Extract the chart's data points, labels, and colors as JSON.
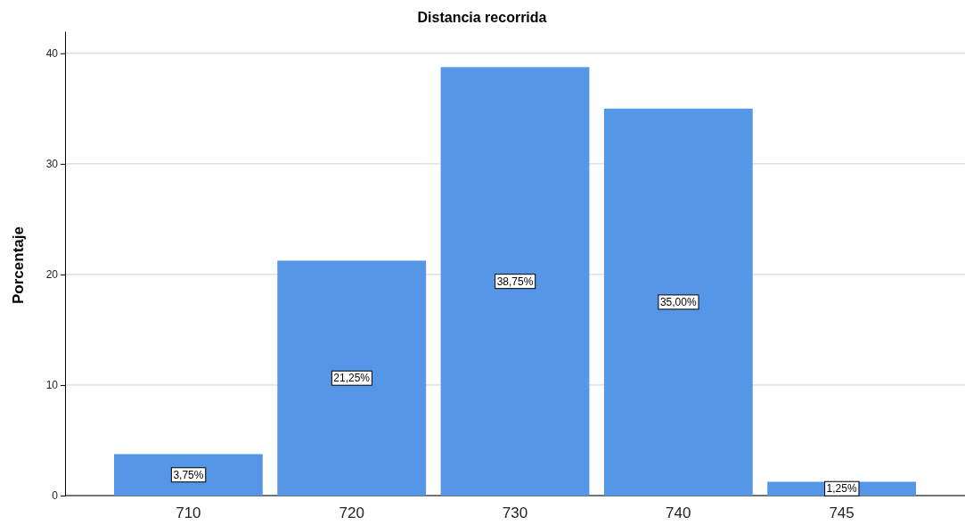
{
  "chart_data": {
    "type": "bar",
    "title": "Distancia recorrida",
    "ylabel": "Porcentaje",
    "categories": [
      "710",
      "720",
      "730",
      "740",
      "745"
    ],
    "values": [
      3.75,
      21.25,
      38.75,
      35,
      1.25
    ],
    "value_labels": [
      "3,75%",
      "21,25%",
      "38,75%",
      "35,00%",
      "1,25%"
    ],
    "color": "#5596e6",
    "ylim": [
      0,
      42
    ],
    "yticks": [
      0,
      10,
      20,
      30,
      40
    ],
    "grid": "y"
  }
}
